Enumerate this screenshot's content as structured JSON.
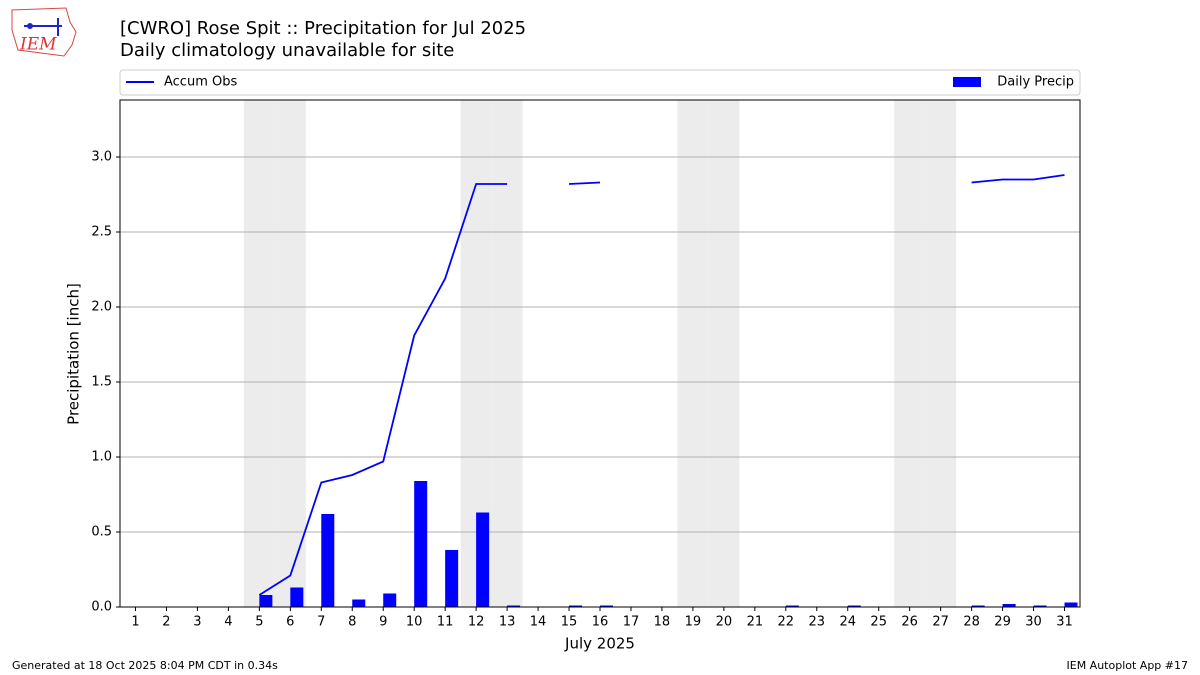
{
  "logo": "IEM",
  "footer": {
    "left": "Generated at 18 Oct 2025 8:04 PM CDT in 0.34s",
    "right": "IEM Autoplot App #17"
  },
  "chart_data": {
    "type": "bar",
    "title": "[CWRO] Rose Spit :: Precipitation for Jul 2025",
    "subtitle": "Daily climatology unavailable for site",
    "x_label": "July 2025",
    "y_label": "Precipitation [inch]",
    "categories": [
      "1",
      "2",
      "3",
      "4",
      "5",
      "6",
      "7",
      "8",
      "9",
      "10",
      "11",
      "12",
      "13",
      "14",
      "15",
      "16",
      "17",
      "18",
      "19",
      "20",
      "21",
      "22",
      "23",
      "24",
      "25",
      "26",
      "27",
      "28",
      "29",
      "30",
      "31"
    ],
    "weekend_shading": [
      5,
      6,
      12,
      13,
      19,
      20,
      26,
      27
    ],
    "shading_color": "#ececec",
    "series": [
      {
        "name": "Accum Obs",
        "type": "line",
        "color": "#0000ff",
        "values": [
          null,
          null,
          null,
          null,
          0.08,
          0.21,
          0.83,
          0.88,
          0.97,
          1.81,
          2.19,
          2.82,
          2.82,
          null,
          2.82,
          2.83,
          null,
          null,
          null,
          null,
          null,
          null,
          null,
          null,
          null,
          null,
          null,
          2.83,
          2.85,
          2.85,
          2.88
        ]
      },
      {
        "name": "Daily Precip",
        "type": "bar",
        "color": "#0000ff",
        "values": [
          null,
          null,
          null,
          null,
          0.08,
          0.13,
          0.62,
          0.05,
          0.09,
          0.84,
          0.38,
          0.63,
          0.01,
          null,
          0.01,
          0.01,
          null,
          null,
          null,
          null,
          null,
          0.01,
          null,
          0.01,
          null,
          null,
          null,
          0.01,
          0.02,
          0.01,
          0.03
        ]
      }
    ],
    "ylim": [
      0,
      3.38
    ],
    "yticks": [
      {
        "value": 0,
        "label": "0.0"
      },
      0.5,
      {
        "value": 1,
        "label": "1.0"
      },
      1.5,
      {
        "value": 2,
        "label": "2.0"
      },
      2.5,
      {
        "value": 3,
        "label": "3.0"
      }
    ],
    "grid": true
  }
}
